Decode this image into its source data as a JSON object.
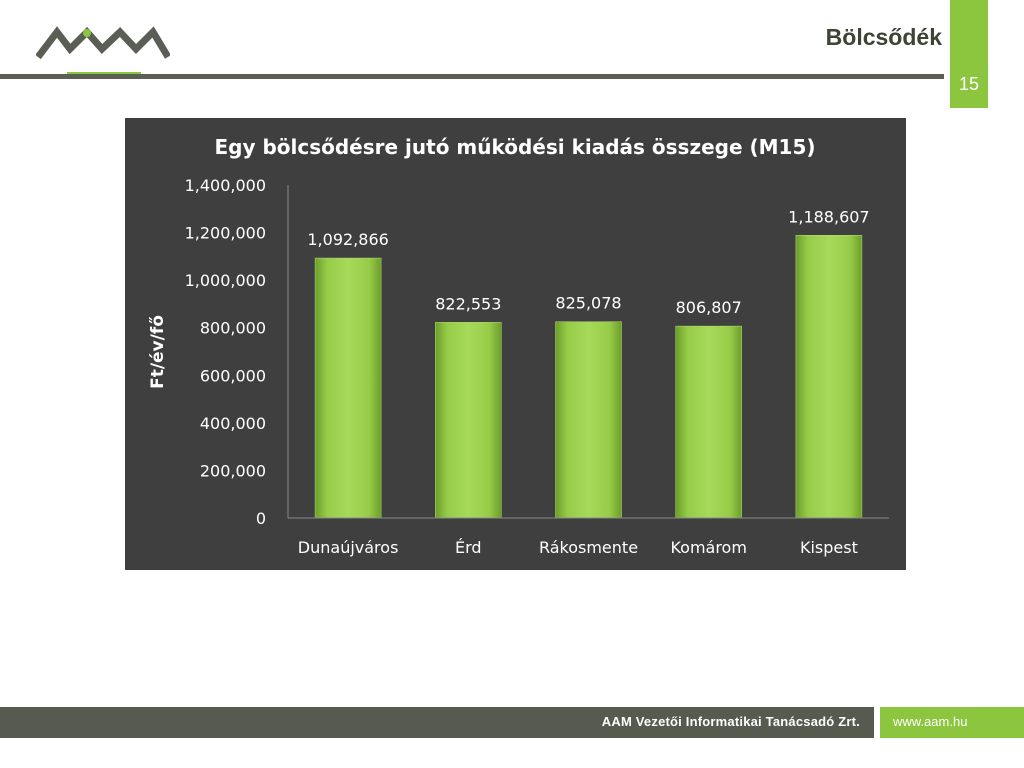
{
  "slide": {
    "title": "Bölcsődék",
    "page_number": "15"
  },
  "footer": {
    "company": "AAM Vezetői Informatikai Tanácsadó Zrt.",
    "url": "www.aam.hu"
  },
  "colors": {
    "brand_green": "#8cc63f",
    "brand_gray": "#575a4e",
    "chart_background": "#3f3f3f"
  },
  "chart_data": {
    "type": "bar",
    "title": "Egy bölcsődésre jutó működési kiadás összege (M15)",
    "xlabel": "",
    "ylabel": "Ft/év/fő",
    "categories": [
      "Dunaújváros",
      "Érd",
      "Rákosmente",
      "Komárom",
      "Kispest"
    ],
    "values": [
      1092866,
      822553,
      825078,
      806807,
      1188607
    ],
    "data_labels": [
      "1,092,866",
      "822,553",
      "825,078",
      "806,807",
      "1,188,607"
    ],
    "ylim": [
      0,
      1400000
    ],
    "yticks": [
      0,
      200000,
      400000,
      600000,
      800000,
      1000000,
      1200000,
      1400000
    ],
    "ytick_labels": [
      "0",
      "200,000",
      "400,000",
      "600,000",
      "800,000",
      "1,000,000",
      "1,200,000",
      "1,400,000"
    ],
    "grid": false,
    "legend": "none"
  }
}
